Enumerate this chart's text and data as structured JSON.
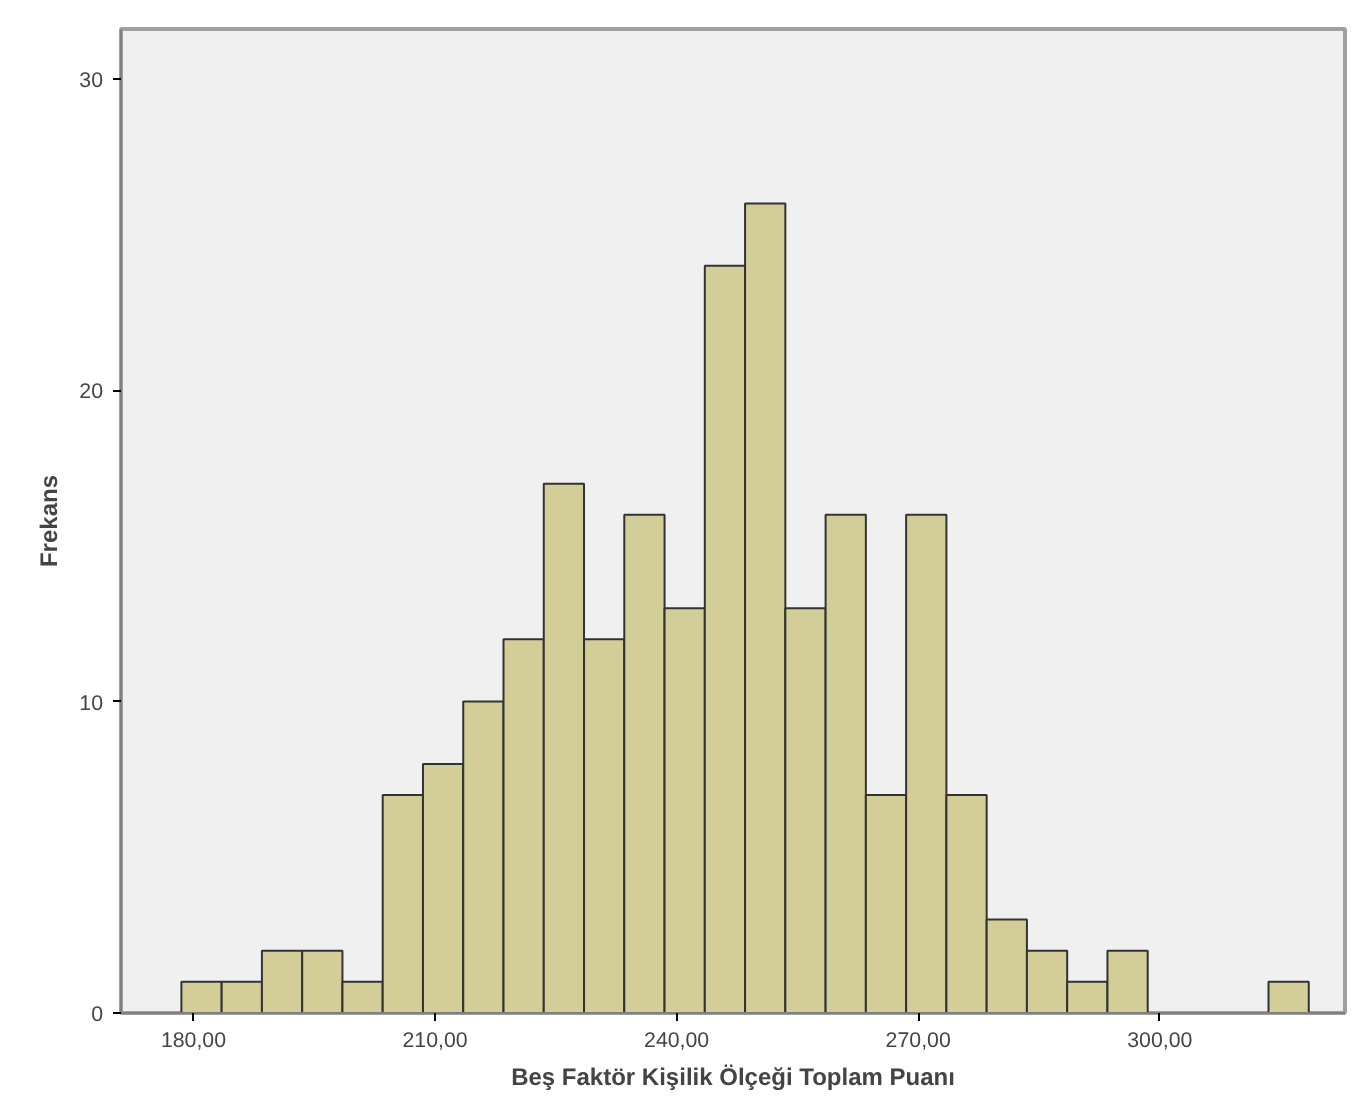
{
  "chart_data": {
    "type": "histogram",
    "xlabel": "Beş Faktör Kişilik Ölçeği Toplam Puanı",
    "ylabel": "Frekans",
    "bins": [
      178.5,
      183.5,
      188.5,
      193.5,
      198.5,
      203.5,
      208.5,
      213.5,
      218.5,
      223.5,
      228.5,
      233.5,
      238.5,
      243.5,
      248.5,
      253.5,
      258.5,
      263.5,
      268.5,
      273.5,
      278.5,
      283.5,
      288.5,
      293.5,
      298.5,
      303.5,
      308.5,
      313.5,
      318.5
    ],
    "values": [
      1,
      1,
      2,
      2,
      1,
      7,
      8,
      10,
      12,
      17,
      12,
      16,
      13,
      24,
      26,
      13,
      16,
      7,
      16,
      7,
      3,
      2,
      1,
      2,
      0,
      0,
      0,
      1
    ],
    "color": "#d3ce97",
    "xlim": [
      171,
      323
    ],
    "ylim": [
      0,
      31.6
    ],
    "xticks": [
      {
        "value": 180,
        "label": "180,00"
      },
      {
        "value": 210,
        "label": "210,00"
      },
      {
        "value": 240,
        "label": "240,00"
      },
      {
        "value": 270,
        "label": "270,00"
      },
      {
        "value": 300,
        "label": "300,00"
      }
    ],
    "yticks": [
      0,
      10,
      20,
      30
    ],
    "grid": false
  }
}
